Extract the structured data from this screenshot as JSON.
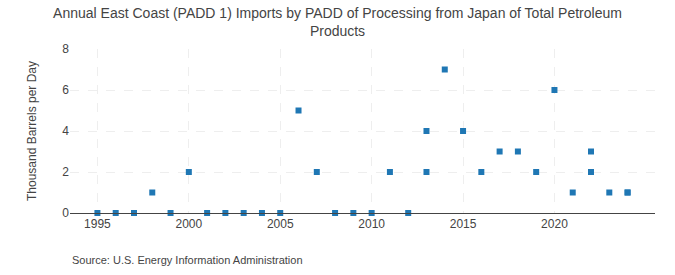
{
  "chart_data": {
    "type": "scatter",
    "title": "Annual East Coast (PADD 1) Imports by PADD of Processing from Japan of Total Petroleum\nProducts",
    "ylabel": "Thousand Barrels per Day",
    "annotations": [
      "Source: U.S. Energy Information Administration"
    ],
    "x": [
      1995,
      1996,
      1997,
      1998,
      1999,
      2000,
      2001,
      2002,
      2003,
      2004,
      2005,
      2006,
      2007,
      2008,
      2009,
      2010,
      2011,
      2012,
      2013,
      2013,
      2014,
      2015,
      2016,
      2017,
      2018,
      2019,
      2020,
      2021,
      2022,
      2022,
      2023,
      2024,
      2024
    ],
    "values": [
      0,
      0,
      0,
      1,
      0,
      2,
      0,
      0,
      0,
      0,
      0,
      5,
      2,
      0,
      0,
      0,
      2,
      0,
      4,
      2,
      7,
      4,
      2,
      3,
      3,
      2,
      6,
      1,
      3,
      2,
      1,
      1,
      1
    ],
    "marker": "square",
    "xlim": [
      1993.5,
      2025.5
    ],
    "xticks": [
      1995,
      2000,
      2005,
      2010,
      2015,
      2020
    ],
    "ylim": [
      0,
      8
    ],
    "yticks": [
      0,
      2,
      4,
      6,
      8
    ],
    "grid": true
  }
}
